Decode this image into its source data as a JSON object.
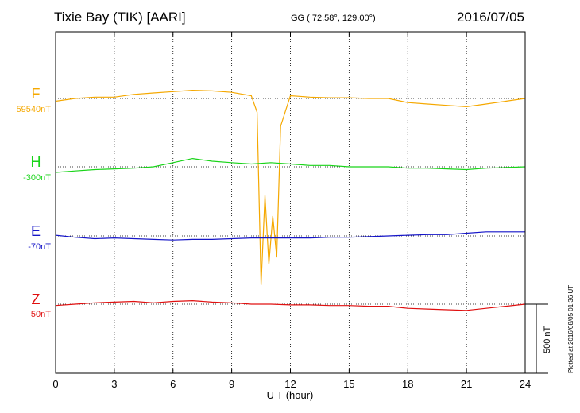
{
  "header": {
    "station": "Tixie Bay (TIK)  [AARI]",
    "coords": "GG ( 72.58°, 129.00°)",
    "date": "2016/07/05"
  },
  "footer": {
    "plotted": "Plotted at 2016/08/05 01:36 UT"
  },
  "chart_data": {
    "type": "line",
    "xlabel": "U T (hour)",
    "xlim": [
      0,
      24
    ],
    "xticks": [
      "0",
      "3",
      "6",
      "9",
      "12",
      "15",
      "18",
      "21",
      "24"
    ],
    "scale_bar": "500 nT",
    "series": [
      {
        "name": "F",
        "baseline": "59540nT",
        "color": "#f5a800",
        "x": [
          0,
          1,
          2,
          3,
          4,
          5,
          6,
          7,
          8,
          9,
          10,
          10.3,
          10.5,
          10.7,
          10.9,
          11.1,
          11.3,
          11.5,
          12,
          13,
          14,
          15,
          16,
          17,
          18,
          19,
          20,
          21,
          22,
          23,
          24
        ],
        "y": [
          -20,
          0,
          10,
          10,
          30,
          40,
          50,
          60,
          55,
          45,
          20,
          -100,
          -1350,
          -700,
          -1200,
          -850,
          -1150,
          -200,
          20,
          10,
          5,
          5,
          0,
          0,
          -30,
          -40,
          -50,
          -60,
          -40,
          -20,
          0
        ]
      },
      {
        "name": "H",
        "baseline": "-300nT",
        "color": "#19d419",
        "x": [
          0,
          1,
          2,
          3,
          4,
          5,
          6,
          7,
          8,
          9,
          10,
          11,
          12,
          13,
          14,
          15,
          16,
          17,
          18,
          19,
          20,
          21,
          22,
          23,
          24
        ],
        "y": [
          -40,
          -30,
          -20,
          -15,
          -10,
          0,
          30,
          60,
          40,
          30,
          20,
          30,
          20,
          10,
          10,
          0,
          0,
          0,
          -10,
          -10,
          -15,
          -20,
          -10,
          -5,
          0
        ]
      },
      {
        "name": "E",
        "baseline": "-70nT",
        "color": "#1515c8",
        "x": [
          0,
          1,
          2,
          3,
          4,
          5,
          6,
          7,
          8,
          9,
          10,
          11,
          12,
          13,
          14,
          15,
          16,
          17,
          18,
          19,
          20,
          21,
          22,
          23,
          24
        ],
        "y": [
          5,
          -10,
          -20,
          -15,
          -20,
          -25,
          -30,
          -25,
          -25,
          -20,
          -15,
          -15,
          -15,
          -15,
          -10,
          -10,
          -5,
          0,
          5,
          10,
          10,
          20,
          30,
          30,
          30
        ]
      },
      {
        "name": "Z",
        "baseline": "50nT",
        "color": "#e01010",
        "x": [
          0,
          1,
          2,
          3,
          4,
          5,
          6,
          7,
          8,
          9,
          10,
          11,
          12,
          13,
          14,
          15,
          16,
          17,
          18,
          19,
          20,
          21,
          22,
          23,
          24
        ],
        "y": [
          -10,
          0,
          10,
          15,
          20,
          10,
          20,
          25,
          15,
          10,
          0,
          0,
          -5,
          -5,
          -10,
          -10,
          -15,
          -15,
          -30,
          -35,
          -40,
          -45,
          -30,
          -15,
          0
        ]
      }
    ]
  }
}
